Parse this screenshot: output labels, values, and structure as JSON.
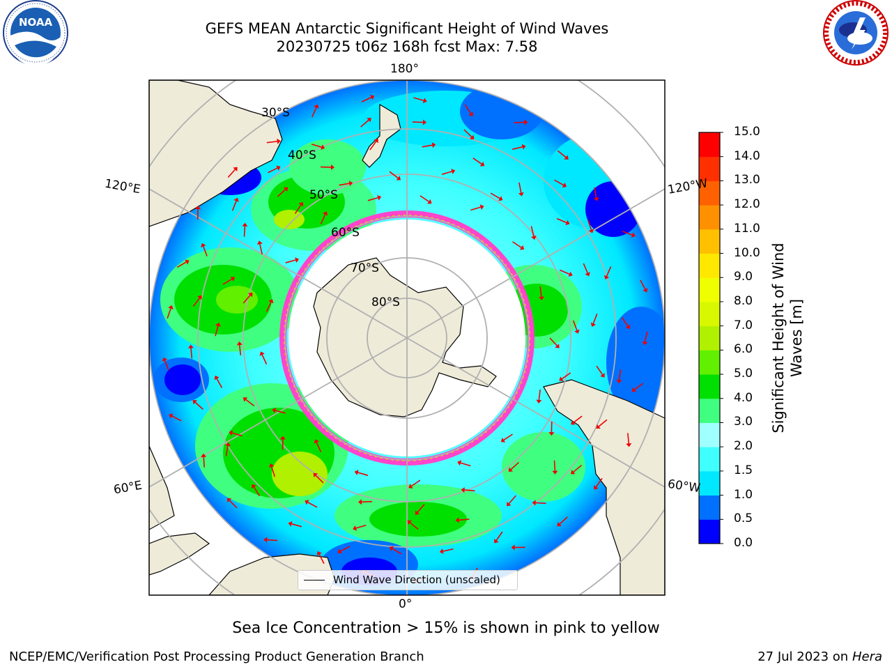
{
  "title_line1": "GEFS MEAN Antarctic Significant Height of Wind Waves",
  "title_line2": "20230725 t06z 168h fcst   Max: 7.58",
  "logos": {
    "left": "noara-logo",
    "left_ring_text": "NATIONAL OCEANIC AND ATMOSPHERIC ADMINISTRATION · U.S. DEPARTMENT OF COMMERCE",
    "left_center_text": "NOAA",
    "right": "nws-logo",
    "right_ring_text": "NATIONAL WEATHER SERVICE"
  },
  "map": {
    "projection": "south-polar-stereographic",
    "lon_labels": {
      "top": "180°",
      "bottom": "0°",
      "upper_left": "120°E",
      "upper_right": "120°W",
      "lower_left": "60°E",
      "lower_right": "60°W"
    },
    "lat_labels": [
      "30°S",
      "40°S",
      "50°S",
      "60°S",
      "70°S",
      "80°S"
    ],
    "colors": {
      "land": "#efebd9",
      "ice_interior": "#ffffff",
      "grid": "#b0b0b0",
      "arrow": "#ee0000",
      "sea_ice_edge": "#ff44cc"
    }
  },
  "legend_text": "Wind Wave Direction (unscaled)",
  "colorbar": {
    "label": "Significant Height of Wind Waves [m]",
    "ticks": [
      "0.0",
      "0.5",
      "1.0",
      "1.5",
      "2.0",
      "3.0",
      "4.0",
      "5.0",
      "6.0",
      "7.0",
      "8.0",
      "9.0",
      "10.0",
      "11.0",
      "12.0",
      "13.0",
      "14.0",
      "15.0"
    ],
    "colors": [
      "#0000ff",
      "#0070ff",
      "#00e8ff",
      "#40ffff",
      "#a0ffff",
      "#40ff80",
      "#00e000",
      "#60f000",
      "#b0f000",
      "#d8f800",
      "#f0ff00",
      "#ffe800",
      "#ffc000",
      "#ff9000",
      "#ff6000",
      "#ff3000",
      "#ff0000"
    ]
  },
  "caption": "Sea Ice Concentration > 15% is shown in pink to yellow",
  "footer": {
    "left": "NCEP/EMC/Verification Post Processing Product Generation Branch",
    "right_date": "27 Jul 2023 on ",
    "right_system": "Hera"
  }
}
